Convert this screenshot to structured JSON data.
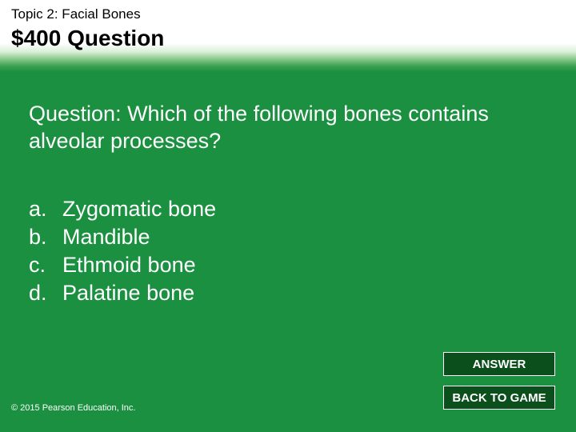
{
  "colors": {
    "background": "#1a9040",
    "button_bg": "#0b4f1d",
    "button_border": "#ffffff",
    "text_white": "#ffffff",
    "text_black": "#000000",
    "header_gradient_stops": [
      "#ffffff",
      "#ffffff",
      "#d8efd8",
      "#8ac88a",
      "#3aa050",
      "#1a9040"
    ]
  },
  "header": {
    "topic": "Topic 2: Facial Bones",
    "value_line": "$400 Question",
    "topic_fontsize": 17,
    "value_fontsize": 28
  },
  "question": {
    "prompt": "Question: Which of the following bones contains alveolar processes?",
    "fontsize": 27
  },
  "options": {
    "fontsize": 27,
    "items": [
      {
        "letter": "a.",
        "text": "Zygomatic bone"
      },
      {
        "letter": "b.",
        "text": "Mandible"
      },
      {
        "letter": "c.",
        "text": "Ethmoid bone"
      },
      {
        "letter": "d.",
        "text": "Palatine bone"
      }
    ]
  },
  "buttons": {
    "answer": "ANSWER",
    "back": "BACK TO GAME",
    "fontsize": 15
  },
  "footer": {
    "copyright": "© 2015 Pearson Education, Inc.",
    "fontsize": 11
  }
}
